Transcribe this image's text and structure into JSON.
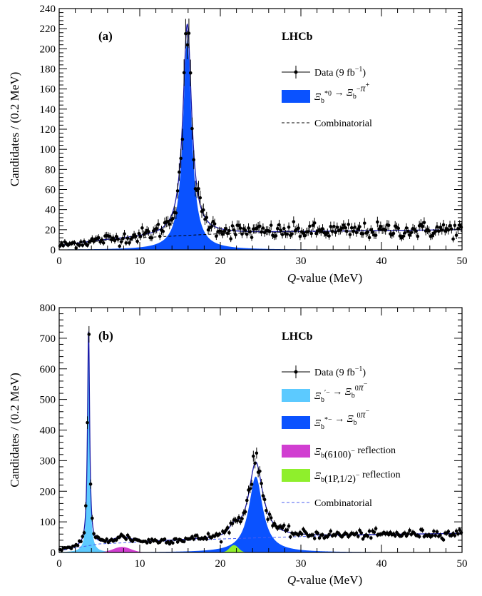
{
  "chart_data": [
    {
      "type": "line",
      "panel_label": "(a)",
      "brand": "LHCb",
      "xlabel_italic": "Q",
      "xlabel_rest": "-value (MeV)",
      "ylabel": "Candidates / (0.2 MeV)",
      "xlim": [
        0,
        50
      ],
      "ylim": [
        0,
        240
      ],
      "xticks": [
        0,
        10,
        20,
        30,
        40,
        50
      ],
      "yticks": [
        0,
        20,
        40,
        60,
        80,
        100,
        120,
        140,
        160,
        180,
        200,
        220,
        240
      ],
      "grid": false,
      "legend_position": "top-right",
      "legend": [
        {
          "kind": "data",
          "main": "Data (9 fb",
          "sup": "−1",
          "end": ")"
        },
        {
          "kind": "fill",
          "color": "#0a52ff",
          "main": "Ξ",
          "sub": "b",
          "sup": "*0",
          "rest": " → Ξ",
          "sub2": "b",
          "sup2": "−",
          "rest2": "π",
          "sup3": "+"
        },
        {
          "kind": "dash",
          "color": "#000000",
          "main": "Combinatorial"
        }
      ],
      "components": [
        {
          "name": "signal",
          "color": "#0a52ff",
          "peak_x": 15.9,
          "amplitude": 210,
          "gamma": 0.65
        }
      ],
      "background": {
        "color": "#000000",
        "points": [
          [
            0,
            4
          ],
          [
            5,
            9
          ],
          [
            10,
            12
          ],
          [
            15,
            14
          ],
          [
            20,
            16
          ],
          [
            30,
            18
          ],
          [
            40,
            19
          ],
          [
            50,
            20
          ]
        ]
      },
      "series": [
        {
          "name": "Data (9 fb−1)",
          "x_start": 0.1,
          "x_step": 0.2,
          "count": 250,
          "peak_x": 15.9,
          "peak": 214,
          "gamma": 0.65
        }
      ]
    },
    {
      "type": "line",
      "panel_label": "(b)",
      "brand": "LHCb",
      "xlabel_italic": "Q",
      "xlabel_rest": "-value (MeV)",
      "ylabel": "Candidates / (0.2 MeV)",
      "xlim": [
        0,
        50
      ],
      "ylim": [
        0,
        800
      ],
      "xticks": [
        0,
        10,
        20,
        30,
        40,
        50
      ],
      "yticks": [
        0,
        100,
        200,
        300,
        400,
        500,
        600,
        700,
        800
      ],
      "grid": false,
      "legend_position": "right",
      "legend": [
        {
          "kind": "data",
          "main": "Data (9 fb",
          "sup": "−1",
          "end": ")"
        },
        {
          "kind": "fill",
          "color": "#5ccaff",
          "main": "Ξ",
          "sub": "b",
          "sup": "′−",
          "rest": " → Ξ",
          "sub2": "b",
          "sup2": "0",
          "rest2": "π",
          "sup3": "−"
        },
        {
          "kind": "fill",
          "color": "#0a52ff",
          "main": "Ξ",
          "sub": "b",
          "sup": "*−",
          "rest": " → Ξ",
          "sub2": "b",
          "sup2": "0",
          "rest2": "π",
          "sup3": "−"
        },
        {
          "kind": "fill",
          "color": "#d13ed1",
          "main": "Ξ",
          "sub": "b",
          "rest": "(6100)",
          "sup2": "−",
          "rest2": " reflection"
        },
        {
          "kind": "fill",
          "color": "#8fef2c",
          "main": "Ξ",
          "sub": "b",
          "rest": "(1P,1/2)",
          "sup2": "−",
          "rest2": " reflection"
        },
        {
          "kind": "dash",
          "color": "#4a5ef0",
          "main": "Combinatorial"
        }
      ],
      "components": [
        {
          "name": "prime",
          "color": "#5ccaff",
          "peak_x": 3.65,
          "amplitude": 700,
          "gamma": 0.16
        },
        {
          "name": "star",
          "color": "#0a52ff",
          "peak_x": 24.4,
          "amplitude": 248,
          "gamma": 1.05
        },
        {
          "name": "reflection-6100",
          "color": "#d13ed1",
          "peak_x": 7.8,
          "amplitude": 18,
          "sigma": 1.1
        },
        {
          "name": "reflection-1p",
          "color": "#8fef2c",
          "peak_x": 21.7,
          "amplitude": 24,
          "sigma": 0.55
        }
      ],
      "background": {
        "color": "#4a5ef0",
        "points": [
          [
            0,
            5
          ],
          [
            2,
            15
          ],
          [
            5,
            28
          ],
          [
            10,
            34
          ],
          [
            20,
            44
          ],
          [
            30,
            52
          ],
          [
            40,
            58
          ],
          [
            50,
            62
          ]
        ]
      },
      "series": [
        {
          "name": "Data (9 fb−1)",
          "x_start": 0.1,
          "x_step": 0.2,
          "count": 250,
          "peaks": [
            {
              "x": 3.65,
              "y": 760,
              "gamma": 0.16
            },
            {
              "x": 24.4,
              "y": 300,
              "gamma": 1.05
            }
          ]
        }
      ]
    }
  ]
}
